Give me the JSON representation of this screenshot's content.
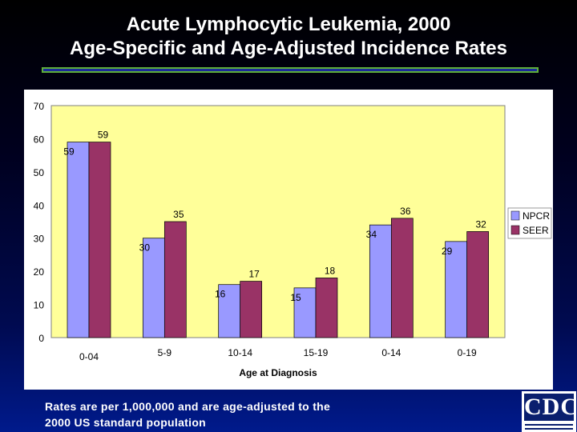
{
  "title_line1": "Acute Lymphocytic Leukemia, 2000",
  "title_line2": "Age-Specific and Age-Adjusted Incidence Rates",
  "footnote_line1": "Rates are per 1,000,000 and are age-adjusted to the",
  "footnote_line2": "2000 US standard population",
  "logo": {
    "text": "CDC",
    "icon": "cdc-logo-icon"
  },
  "colors": {
    "npcr": "#9999ff",
    "seer": "#993366",
    "plot_bg": "#ffff99",
    "panel_bg": "#ffffff"
  },
  "chart_data": {
    "type": "bar",
    "categories": [
      "0-04",
      "5-9",
      "10-14",
      "15-19",
      "0-14",
      "0-19"
    ],
    "series": [
      {
        "name": "NPCR",
        "values": [
          59,
          30,
          16,
          15,
          34,
          29
        ]
      },
      {
        "name": "SEER",
        "values": [
          59,
          35,
          17,
          18,
          36,
          32
        ]
      }
    ],
    "xlabel": "Age at Diagnosis",
    "ylabel": "",
    "ylim": [
      0,
      70
    ],
    "yticks": [
      0,
      10,
      20,
      30,
      40,
      50,
      60,
      70
    ],
    "grid": false,
    "legend": "right",
    "data_labels": true
  }
}
